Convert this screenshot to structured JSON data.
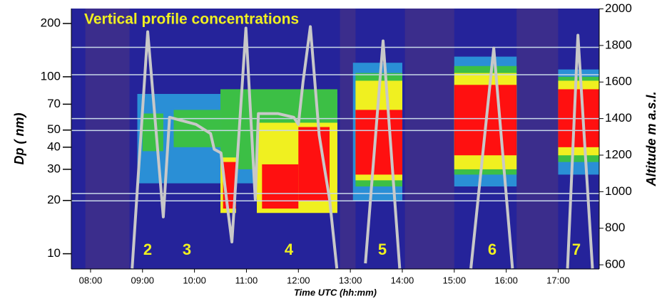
{
  "chart_data": {
    "type": "heatmap",
    "title": "Vertical profile concentrations",
    "ylabel": "Dp ( nm)",
    "y2label": "Altitude m a.s.l.",
    "xlabel": "Time UTC (hh:mm)",
    "yscale": "log",
    "xlim": [
      7.63,
      17.79
    ],
    "ylim": [
      8.2,
      243
    ],
    "y2lim": [
      577,
      2002
    ],
    "xticks": [
      {
        "value": 8,
        "label": "08:00"
      },
      {
        "value": 9,
        "label": "09:00"
      },
      {
        "value": 10,
        "label": "10:00"
      },
      {
        "value": 11,
        "label": "11:00"
      },
      {
        "value": 12,
        "label": "12:00"
      },
      {
        "value": 13,
        "label": "13:00"
      },
      {
        "value": 14,
        "label": "14:00"
      },
      {
        "value": 15,
        "label": "15:00"
      },
      {
        "value": 16,
        "label": "16:00"
      },
      {
        "value": 17,
        "label": "17:00"
      }
    ],
    "yticks": [
      10,
      20,
      30,
      40,
      50,
      70,
      100,
      200
    ],
    "y2ticks": [
      600,
      800,
      1000,
      1200,
      1400,
      1600,
      1800,
      2000
    ],
    "background": "#25239a",
    "layers": [
      {
        "x0": 7.9,
        "x1": 8.75,
        "y0": 8.2,
        "y1": 243,
        "color": "#3b2d8c"
      },
      {
        "x0": 12.8,
        "x1": 13.1,
        "y0": 8.2,
        "y1": 243,
        "color": "#3b2d8c"
      },
      {
        "x0": 14.05,
        "x1": 15.0,
        "y0": 8.2,
        "y1": 243,
        "color": "#3b2d8c"
      },
      {
        "x0": 16.2,
        "x1": 17.0,
        "y0": 8.2,
        "y1": 243,
        "color": "#3b2d8c"
      },
      {
        "x0": 8.9,
        "x1": 12.75,
        "y0": 25,
        "y1": 80,
        "color": "#2a8fd6"
      },
      {
        "x0": 9.0,
        "x1": 9.4,
        "y0": 38,
        "y1": 62,
        "color": "#3cbf45"
      },
      {
        "x0": 9.6,
        "x1": 10.5,
        "y0": 40,
        "y1": 65,
        "color": "#3cbf45"
      },
      {
        "x0": 10.5,
        "x1": 12.75,
        "y0": 30,
        "y1": 85,
        "color": "#3cbf45"
      },
      {
        "x0": 10.5,
        "x1": 10.8,
        "y0": 17,
        "y1": 35,
        "color": "#f0f020"
      },
      {
        "x0": 10.55,
        "x1": 10.8,
        "y0": 18,
        "y1": 33,
        "color": "#ff1010"
      },
      {
        "x0": 11.2,
        "x1": 12.75,
        "y0": 17,
        "y1": 55,
        "color": "#f0f020"
      },
      {
        "x0": 11.3,
        "x1": 12.0,
        "y0": 18,
        "y1": 32,
        "color": "#ff1010"
      },
      {
        "x0": 12.0,
        "x1": 12.6,
        "y0": 20,
        "y1": 52,
        "color": "#ff1010"
      },
      {
        "x0": 13.05,
        "x1": 14.0,
        "y0": 20,
        "y1": 120,
        "color": "#2a8fd6"
      },
      {
        "x0": 13.1,
        "x1": 14.0,
        "y0": 24,
        "y1": 105,
        "color": "#3cbf45"
      },
      {
        "x0": 13.1,
        "x1": 14.0,
        "y0": 26,
        "y1": 95,
        "color": "#f0f020"
      },
      {
        "x0": 13.1,
        "x1": 14.0,
        "y0": 28,
        "y1": 65,
        "color": "#ff1010"
      },
      {
        "x0": 15.0,
        "x1": 16.2,
        "y0": 24,
        "y1": 130,
        "color": "#2a8fd6"
      },
      {
        "x0": 15.0,
        "x1": 16.2,
        "y0": 28,
        "y1": 115,
        "color": "#3cbf45"
      },
      {
        "x0": 15.0,
        "x1": 16.2,
        "y0": 30,
        "y1": 105,
        "color": "#f0f020"
      },
      {
        "x0": 15.0,
        "x1": 16.2,
        "y0": 36,
        "y1": 90,
        "color": "#ff1010"
      },
      {
        "x0": 17.0,
        "x1": 17.79,
        "y0": 28,
        "y1": 110,
        "color": "#2a8fd6"
      },
      {
        "x0": 17.0,
        "x1": 17.79,
        "y0": 33,
        "y1": 100,
        "color": "#3cbf45"
      },
      {
        "x0": 17.0,
        "x1": 17.79,
        "y0": 36,
        "y1": 95,
        "color": "#f0f020"
      },
      {
        "x0": 17.0,
        "x1": 17.79,
        "y0": 40,
        "y1": 85,
        "color": "#ff1010"
      }
    ],
    "reference_lines": {
      "values": [
        1790,
        1640,
        1400,
        1335,
        990,
        950
      ],
      "color": "#c8d8e8"
    },
    "x": [
      8.8,
      9.1,
      9.4,
      9.52,
      10.03,
      10.31,
      10.38,
      10.51,
      10.65,
      10.72,
      10.99,
      11.17,
      11.23,
      11.61,
      11.91,
      12.0,
      12.09,
      12.23,
      12.4,
      12.51,
      12.6,
      12.74,
      13.0,
      13.29,
      13.63,
      13.95,
      14.5,
      15.32,
      15.76,
      16.12,
      16.6,
      17.18,
      17.38,
      17.66
    ],
    "series": [
      {
        "name": "Altitude",
        "axis": "y2",
        "color": "#c8c8c8",
        "values": [
          580,
          1875,
          862,
          1407,
          1368,
          1318,
          1232,
          1212,
          881,
          725,
          1895,
          959,
          1427,
          1427,
          1407,
          1368,
          1602,
          1903,
          1310,
          1115,
          959,
          580,
          null,
          608,
          1825,
          580,
          null,
          580,
          1786,
          580,
          null,
          580,
          1856,
          580
        ]
      }
    ],
    "annotations": [
      "2",
      "3",
      "4",
      "5",
      "6",
      "7"
    ],
    "annotation_color": "#f0f020"
  }
}
